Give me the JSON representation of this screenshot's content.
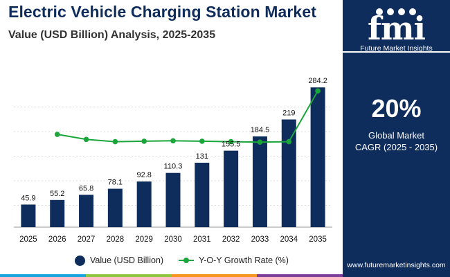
{
  "header": {
    "title": "Electric Vehicle Charging Station Market",
    "subtitle": "Value (USD Billion) Analysis, 2025-2035"
  },
  "chart_data": {
    "type": "bar",
    "categories": [
      "2025",
      "2026",
      "2027",
      "2028",
      "2029",
      "2030",
      "2031",
      "2032",
      "2033",
      "2034",
      "2035"
    ],
    "series": [
      {
        "name": "Value (USD Billion)",
        "type": "bar",
        "values": [
          45.9,
          55.2,
          65.8,
          78.1,
          92.8,
          110.3,
          131,
          155.5,
          184.5,
          219,
          284.2
        ],
        "labels": [
          "45.9",
          "55.2",
          "65.8",
          "78.1",
          "92.8",
          "110.3",
          "131",
          "155.5",
          "184.5",
          "219",
          "284.2"
        ]
      },
      {
        "name": "Y-O-Y Growth Rate (%)",
        "type": "line",
        "axis": "secondary",
        "values": [
          null,
          20.3,
          19.2,
          18.7,
          18.8,
          18.9,
          18.8,
          18.7,
          18.6,
          18.7,
          29.8
        ]
      }
    ],
    "ylim": [
      0,
      300
    ],
    "y2lim": [
      0,
      35
    ],
    "grid": true,
    "legend": "bottom-center"
  },
  "legend": {
    "value_label": "Value (USD Billion)",
    "growth_label": "Y-O-Y Growth Rate (%)"
  },
  "sidebar": {
    "logo_text": "fmi",
    "logo_subtitle": "Future Market Insights",
    "cagr_value": "20%",
    "cagr_line1": "Global Market",
    "cagr_line2": "CAGR (2025 - 2035)",
    "website": "www.futuremarketinsights.com"
  },
  "colors": {
    "bar": "#0f2d5c",
    "line": "#1aa63a",
    "grid": "#dcdcdc",
    "sidebar_bg": "#0f2d5c",
    "bottom_stripes": [
      "#17a3dd",
      "#8dc63f",
      "#f7941d",
      "#7b3f98"
    ]
  },
  "icons": [
    "logo-mark",
    "legend-bar-swatch",
    "legend-line-swatch"
  ]
}
